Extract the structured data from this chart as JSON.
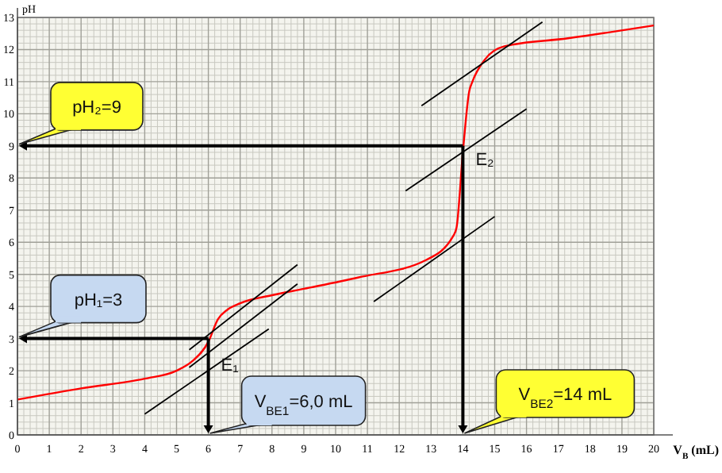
{
  "chart_data": {
    "type": "line",
    "xlabel": "V$_{B}$ (mL)",
    "ylabel": "pH",
    "xlim": [
      0,
      20
    ],
    "ylim": [
      0,
      13
    ],
    "xticks": [
      0,
      1,
      2,
      3,
      4,
      5,
      6,
      7,
      8,
      9,
      10,
      11,
      12,
      13,
      14,
      15,
      16,
      17,
      18,
      19,
      20
    ],
    "yticks": [
      0,
      1,
      2,
      3,
      4,
      5,
      6,
      7,
      8,
      9,
      10,
      11,
      12,
      13
    ],
    "grid": true,
    "marker": "none",
    "line_style": "solid",
    "series": [
      {
        "color": "#ff0000",
        "x": [
          0,
          2,
          4,
          5,
          5.5,
          6,
          6.3,
          6.6,
          7,
          8,
          9,
          10.7,
          12.85,
          13.7,
          13.8,
          14,
          14.2,
          14.3,
          14.7,
          15.3,
          17.3,
          20
        ],
        "values": [
          1.1,
          1.45,
          1.75,
          2.0,
          2.3,
          2.9,
          3.6,
          3.9,
          4.1,
          4.35,
          4.55,
          4.9,
          5.45,
          6.2,
          6.45,
          8.8,
          10.7,
          11.0,
          11.7,
          12.1,
          12.35,
          12.75
        ]
      },
      {
        "color": "#000000",
        "x": [
          5.4,
          8.8
        ],
        "values": [
          2.65,
          5.3
        ]
      },
      {
        "color": "#000000",
        "x": [
          5.4,
          8.8
        ],
        "values": [
          2.1,
          4.7
        ]
      },
      {
        "color": "#000000",
        "x": [
          4.0,
          7.9
        ],
        "values": [
          0.65,
          3.3
        ]
      },
      {
        "color": "#000000",
        "x": [
          12.7,
          16.5
        ],
        "values": [
          10.25,
          12.86
        ]
      },
      {
        "color": "#000000",
        "x": [
          12.2,
          16.0
        ],
        "values": [
          7.6,
          10.15
        ]
      },
      {
        "color": "#000000",
        "x": [
          11.2,
          15.0
        ],
        "values": [
          4.15,
          6.8
        ]
      }
    ],
    "annotations": [
      {
        "text": "E₂",
        "x": 14,
        "y": 9
      },
      {
        "text": "E₁",
        "x": 6,
        "y": 3
      },
      "pH₂=9",
      "pH₁=3",
      "V$_{BE1}$=6,0 mL",
      "V$_{BE2}$=14 mL"
    ]
  }
}
